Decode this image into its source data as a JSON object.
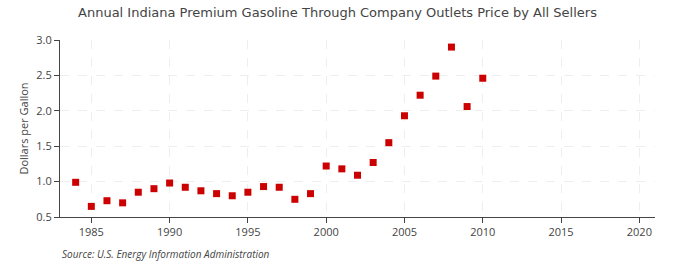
{
  "chart_data": {
    "type": "scatter",
    "title": "Annual Indiana Premium Gasoline Through Company Outlets Price by All Sellers",
    "ylabel": "Dollars per Gallon",
    "annotation": "Source: U.S. Energy Information Administration",
    "x": [
      1984,
      1985,
      1986,
      1987,
      1988,
      1989,
      1990,
      1991,
      1992,
      1993,
      1994,
      1995,
      1996,
      1997,
      1998,
      1999,
      2000,
      2001,
      2002,
      2003,
      2004,
      2005,
      2006,
      2007,
      2008,
      2009,
      2010
    ],
    "values": [
      0.99,
      0.65,
      0.73,
      0.7,
      0.85,
      0.9,
      0.98,
      0.92,
      0.87,
      0.83,
      0.8,
      0.85,
      0.93,
      0.92,
      0.75,
      0.83,
      1.22,
      1.18,
      1.09,
      1.27,
      1.55,
      1.93,
      2.22,
      2.49,
      2.9,
      2.06,
      2.46
    ],
    "color": "#cc0000",
    "marker": "square",
    "xlim": [
      1983,
      2021
    ],
    "ylim": [
      0.5,
      3.0
    ],
    "xticks": [
      1985,
      1990,
      1995,
      2000,
      2005,
      2010,
      2015,
      2020
    ],
    "yticks": [
      0.5,
      {
        "value": 1,
        "label": "1.0"
      },
      1.5,
      {
        "value": 2,
        "label": "2.0"
      },
      2.5,
      {
        "value": 3,
        "label": "3.0"
      }
    ],
    "grid": true
  }
}
